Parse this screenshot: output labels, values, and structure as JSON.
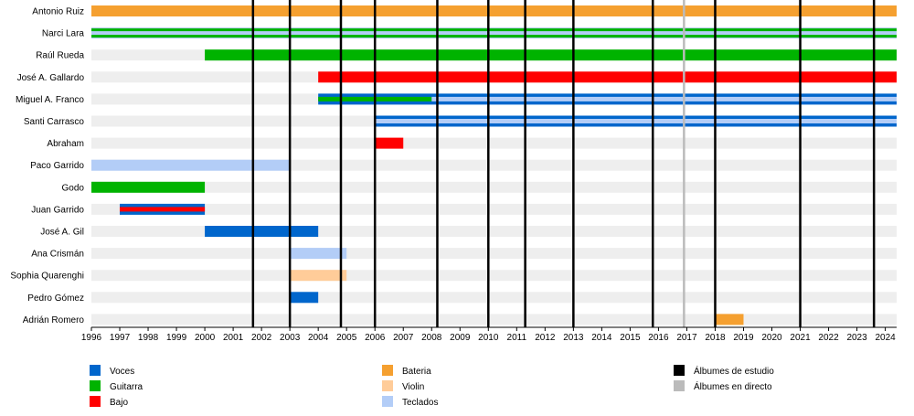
{
  "chart_data": {
    "type": "timeline",
    "x_range": [
      1996,
      2024.4
    ],
    "ticks": [
      1996,
      1997,
      1998,
      1999,
      2000,
      2001,
      2002,
      2003,
      2004,
      2005,
      2006,
      2007,
      2008,
      2009,
      2010,
      2011,
      2012,
      2013,
      2014,
      2015,
      2016,
      2017,
      2018,
      2019,
      2020,
      2021,
      2022,
      2023,
      2024
    ],
    "members": [
      {
        "name": "Antonio Ruiz",
        "roles": [
          {
            "role": "bateria",
            "start": 1996,
            "end": 2024.4
          }
        ]
      },
      {
        "name": "Narci Lara",
        "roles": [
          {
            "role": "teclados",
            "start": 1996,
            "end": 2024.4
          },
          {
            "role": "guitarra",
            "start": 1996,
            "end": 2024.4,
            "style": "stripes"
          }
        ]
      },
      {
        "name": "Raúl Rueda",
        "roles": [
          {
            "role": "guitarra",
            "start": 2000,
            "end": 2024.4
          }
        ]
      },
      {
        "name": "José A. Gallardo",
        "roles": [
          {
            "role": "bajo",
            "start": 2004,
            "end": 2024.4
          }
        ]
      },
      {
        "name": "Miguel A. Franco",
        "roles": [
          {
            "role": "voces",
            "start": 2004,
            "end": 2024.4
          },
          {
            "role": "guitarra",
            "start": 2004,
            "end": 2008,
            "style": "inner"
          },
          {
            "role": "teclados",
            "start": 2008,
            "end": 2024.4,
            "style": "inner"
          }
        ]
      },
      {
        "name": "Santi Carrasco",
        "roles": [
          {
            "role": "voces",
            "start": 2006,
            "end": 2024.4
          },
          {
            "role": "teclados",
            "start": 2006,
            "end": 2024.4,
            "style": "inner"
          }
        ]
      },
      {
        "name": "Abraham",
        "roles": [
          {
            "role": "bajo",
            "start": 2006,
            "end": 2007
          }
        ]
      },
      {
        "name": "Paco Garrido",
        "roles": [
          {
            "role": "teclados",
            "start": 1996,
            "end": 2003
          }
        ]
      },
      {
        "name": "Godo",
        "roles": [
          {
            "role": "guitarra",
            "start": 1996,
            "end": 2000
          }
        ]
      },
      {
        "name": "Juan Garrido",
        "roles": [
          {
            "role": "voces",
            "start": 1997,
            "end": 2000
          },
          {
            "role": "bajo",
            "start": 1997,
            "end": 2000,
            "style": "inner"
          }
        ]
      },
      {
        "name": "José A. Gil",
        "roles": [
          {
            "role": "voces",
            "start": 2000,
            "end": 2004
          }
        ]
      },
      {
        "name": "Ana Crismán",
        "roles": [
          {
            "role": "teclados",
            "start": 2003,
            "end": 2005
          }
        ]
      },
      {
        "name": "Sophia Quarenghi",
        "roles": [
          {
            "role": "violin",
            "start": 2003,
            "end": 2005
          }
        ]
      },
      {
        "name": "Pedro Gómez",
        "roles": [
          {
            "role": "voces",
            "start": 2003,
            "end": 2004
          }
        ]
      },
      {
        "name": "Adrián Romero",
        "roles": [
          {
            "role": "bateria",
            "start": 2018,
            "end": 2019
          }
        ]
      }
    ],
    "studio_albums": [
      2001.7,
      2003,
      2004.8,
      2006,
      2008.2,
      2010,
      2011.3,
      2013,
      2015.8,
      2018,
      2021,
      2023.6
    ],
    "live_albums": [
      2016.9
    ],
    "legend": [
      {
        "key": "voces",
        "label": "Voces",
        "color": "#0066cc"
      },
      {
        "key": "guitarra",
        "label": "Guitarra",
        "color": "#00b300"
      },
      {
        "key": "bajo",
        "label": "Bajo",
        "color": "#ff0000"
      },
      {
        "key": "bateria",
        "label": "Bateria",
        "color": "#f5a030"
      },
      {
        "key": "violin",
        "label": "Violin",
        "color": "#ffcc99"
      },
      {
        "key": "teclados",
        "label": "Teclados",
        "color": "#b3cdf7"
      },
      {
        "key": "studio",
        "label": "Álbumes de estudio",
        "color": "#000000"
      },
      {
        "key": "live",
        "label": "Álbumes en directo",
        "color": "#bbbbbb"
      }
    ],
    "row_band_color": "#eeeeee"
  }
}
